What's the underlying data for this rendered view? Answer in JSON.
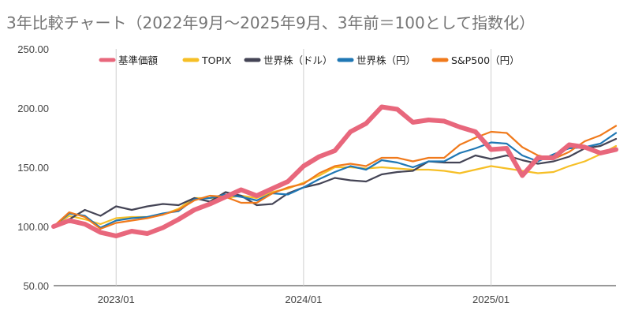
{
  "chart_data": {
    "type": "line",
    "title": "3年比較チャート（2022年9月～2025年9月、3年前＝100として指数化）",
    "xlabel": "",
    "ylabel": "",
    "ylim": [
      50,
      250
    ],
    "yticks": [
      "50.00",
      "100.00",
      "150.00",
      "200.00",
      "250.00"
    ],
    "xtick_labels": [
      {
        "label": "2023/01",
        "x": "2023/01"
      },
      {
        "label": "2024/01",
        "x": "2024/01"
      },
      {
        "label": "2025/01",
        "x": "2025/01"
      }
    ],
    "x": [
      "2022/09",
      "2022/10",
      "2022/11",
      "2022/12",
      "2023/01",
      "2023/02",
      "2023/03",
      "2023/04",
      "2023/05",
      "2023/06",
      "2023/07",
      "2023/08",
      "2023/09",
      "2023/10",
      "2023/11",
      "2023/12",
      "2024/01",
      "2024/02",
      "2024/03",
      "2024/04",
      "2024/05",
      "2024/06",
      "2024/07",
      "2024/08",
      "2024/09",
      "2024/10",
      "2024/11",
      "2024/12",
      "2025/01",
      "2025/02",
      "2025/03",
      "2025/04",
      "2025/05",
      "2025/06",
      "2025/07",
      "2025/08",
      "2025/09"
    ],
    "grid": "vertical",
    "legend_position": "top",
    "series": [
      {
        "name": "基準価額",
        "color": "#e8677c",
        "values": [
          100,
          105,
          102,
          95,
          92,
          96,
          94,
          99,
          106,
          114,
          119,
          125,
          131,
          126,
          132,
          138,
          151,
          159,
          164,
          180,
          187,
          201,
          199,
          188,
          190,
          189,
          184,
          180,
          165,
          166,
          143,
          158,
          158,
          169,
          167,
          162,
          165
        ]
      },
      {
        "name": "TOPIX",
        "color": "#f6bf26",
        "values": [
          100,
          109,
          106,
          102,
          107,
          108,
          108,
          110,
          115,
          124,
          124,
          124,
          126,
          124,
          129,
          132,
          137,
          143,
          150,
          150,
          149,
          150,
          149,
          148,
          148,
          147,
          145,
          148,
          151,
          149,
          147,
          145,
          146,
          151,
          155,
          161,
          168
        ]
      },
      {
        "name": "世界株（ドル）",
        "color": "#444455",
        "values": [
          100,
          106,
          114,
          109,
          117,
          114,
          117,
          119,
          118,
          124,
          121,
          129,
          126,
          118,
          119,
          128,
          133,
          136,
          141,
          139,
          138,
          144,
          146,
          147,
          155,
          154,
          154,
          160,
          157,
          160,
          156,
          153,
          155,
          159,
          166,
          168,
          174
        ]
      },
      {
        "name": "世界株（円）",
        "color": "#1f77b4",
        "values": [
          100,
          111,
          109,
          99,
          105,
          107,
          108,
          111,
          113,
          123,
          124,
          127,
          125,
          122,
          128,
          127,
          133,
          140,
          146,
          151,
          148,
          156,
          154,
          150,
          155,
          155,
          162,
          166,
          171,
          170,
          160,
          155,
          161,
          166,
          167,
          170,
          179
        ]
      },
      {
        "name": "S&P500（円）",
        "color": "#f07a1c",
        "values": [
          100,
          112,
          108,
          98,
          103,
          105,
          107,
          110,
          114,
          122,
          126,
          125,
          120,
          120,
          128,
          133,
          136,
          145,
          151,
          153,
          151,
          158,
          158,
          155,
          158,
          158,
          169,
          175,
          180,
          179,
          167,
          160,
          157,
          163,
          172,
          177,
          185
        ]
      }
    ]
  }
}
